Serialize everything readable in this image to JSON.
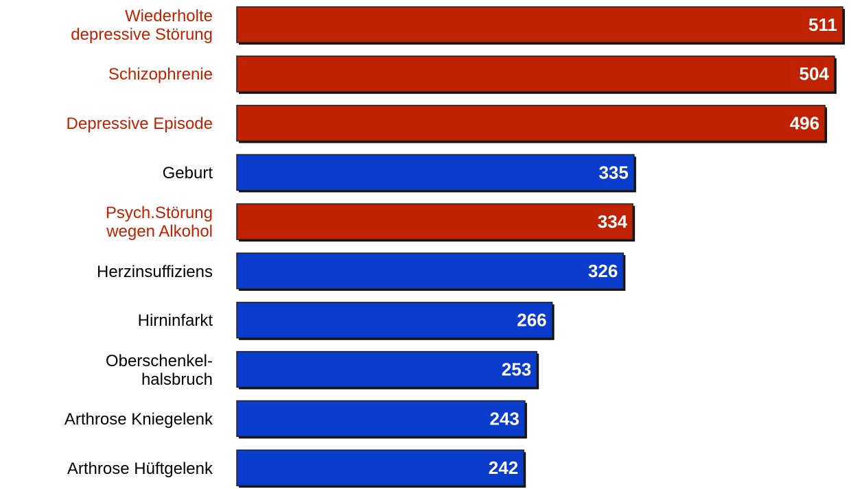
{
  "chart_data": {
    "type": "bar",
    "categories": [
      "Wiederholte\ndepressive Störung",
      "Schizophrenie",
      "Depressive Episode",
      "Geburt",
      "Psych.Störung\nwegen Alkohol",
      "Herzinsuffiziens",
      "Hirninfarkt",
      "Oberschenkel-\nhalsbruch",
      "Arthrose Kniegelenk",
      "Arthrose Hüftgelenk"
    ],
    "values": [
      511,
      504,
      496,
      335,
      334,
      326,
      266,
      253,
      243,
      242
    ],
    "colors": [
      "#bf2200",
      "#bf2200",
      "#bf2200",
      "#0a3ccc",
      "#bf2200",
      "#0a3ccc",
      "#0a3ccc",
      "#0a3ccc",
      "#0a3ccc",
      "#0a3ccc"
    ],
    "label_colors": [
      "#bf2200",
      "#bf2200",
      "#bf2200",
      "#000000",
      "#bf2200",
      "#000000",
      "#000000",
      "#000000",
      "#000000",
      "#000000"
    ]
  }
}
